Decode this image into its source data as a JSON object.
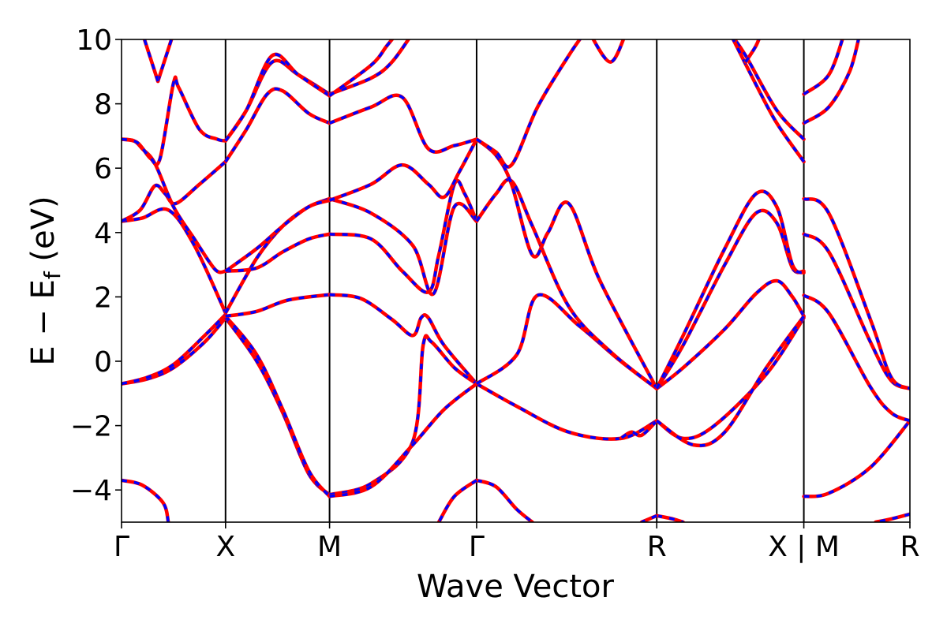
{
  "chart_data": {
    "type": "line",
    "title": "",
    "xlabel": "Wave Vector",
    "ylabel": "E − E",
    "ylabel_subscript": "f",
    "ylabel_unit": "(eV)",
    "ylim": [
      -5,
      10
    ],
    "yticks": [
      -4,
      -2,
      0,
      2,
      4,
      6,
      8,
      10
    ],
    "grid": false,
    "legend": "none",
    "path_length": 7.58,
    "high_symmetry_points": [
      {
        "label": "Γ",
        "x": 0
      },
      {
        "label": "X",
        "x": 1
      },
      {
        "label": "M",
        "x": 2
      },
      {
        "label": "Γ",
        "x": 3.414
      },
      {
        "label": "R",
        "x": 5.146
      },
      {
        "label": "X | M",
        "x": 6.56
      },
      {
        "label": "R",
        "x": 7.58
      }
    ],
    "series_style": {
      "reference": "#0000ff",
      "comparison": "#ff0000"
    },
    "bands": [
      [
        [
          0,
          -3.7
        ],
        [
          0.2,
          -3.85
        ],
        [
          0.4,
          -4.4
        ],
        [
          0.45,
          -5
        ]
      ],
      [
        [
          0,
          -0.7
        ],
        [
          0.25,
          -0.55
        ],
        [
          0.5,
          -0.2
        ],
        [
          0.8,
          0.6
        ],
        [
          1,
          1.35
        ]
      ],
      [
        [
          0,
          -0.7
        ],
        [
          0.25,
          -0.5
        ],
        [
          0.5,
          -0.1
        ],
        [
          0.8,
          0.8
        ],
        [
          1,
          1.45
        ]
      ],
      [
        [
          0,
          4.35
        ],
        [
          0.2,
          4.45
        ],
        [
          0.45,
          4.7
        ],
        [
          0.7,
          3.6
        ],
        [
          1,
          1.5
        ]
      ],
      [
        [
          0,
          4.35
        ],
        [
          0.18,
          4.7
        ],
        [
          0.32,
          5.45
        ],
        [
          0.42,
          5.2
        ],
        [
          0.52,
          4.9
        ],
        [
          0.75,
          5.5
        ],
        [
          1,
          6.2
        ]
      ],
      [
        [
          0,
          6.9
        ],
        [
          0.12,
          6.85
        ],
        [
          0.2,
          6.6
        ],
        [
          0.32,
          6.15
        ],
        [
          0.5,
          4.8
        ],
        [
          0.7,
          3.8
        ],
        [
          0.9,
          2.85
        ],
        [
          1,
          2.8
        ]
      ],
      [
        [
          0,
          6.9
        ],
        [
          0.15,
          6.8
        ],
        [
          0.28,
          6.3
        ],
        [
          0.37,
          6.3
        ],
        [
          0.5,
          8.65
        ],
        [
          0.55,
          8.5
        ],
        [
          0.75,
          7.2
        ],
        [
          0.92,
          6.9
        ],
        [
          1,
          6.85
        ]
      ],
      [
        [
          0.35,
          8.7
        ],
        [
          0.5,
          10.2
        ]
      ],
      [
        [
          0.35,
          8.7
        ],
        [
          0.2,
          10.2
        ]
      ],
      [
        [
          1,
          1.35
        ],
        [
          1.3,
          0
        ],
        [
          1.55,
          -1.6
        ],
        [
          1.8,
          -3.5
        ],
        [
          2,
          -4.15
        ]
      ],
      [
        [
          1,
          1.4
        ],
        [
          1.3,
          0.2
        ],
        [
          1.55,
          -1.5
        ],
        [
          1.8,
          -3.4
        ],
        [
          2,
          -4.2
        ]
      ],
      [
        [
          1,
          1.4
        ],
        [
          1.3,
          1.55
        ],
        [
          1.6,
          1.9
        ],
        [
          2,
          2.07
        ]
      ],
      [
        [
          1,
          1.5
        ],
        [
          1.3,
          3.2
        ],
        [
          1.55,
          4.2
        ],
        [
          1.8,
          4.8
        ],
        [
          2,
          5.05
        ]
      ],
      [
        [
          1,
          2.8
        ],
        [
          1.3,
          2.9
        ],
        [
          1.55,
          3.4
        ],
        [
          1.8,
          3.8
        ],
        [
          2,
          3.95
        ]
      ],
      [
        [
          1,
          2.8
        ],
        [
          1.3,
          3.5
        ],
        [
          1.55,
          4.2
        ],
        [
          1.8,
          4.8
        ],
        [
          2,
          5.0
        ]
      ],
      [
        [
          1,
          6.2
        ],
        [
          1.2,
          7.2
        ],
        [
          1.4,
          8.3
        ],
        [
          1.55,
          8.4
        ],
        [
          1.8,
          7.7
        ],
        [
          2,
          7.4
        ]
      ],
      [
        [
          1,
          6.85
        ],
        [
          1.2,
          7.8
        ],
        [
          1.45,
          9.3
        ],
        [
          1.7,
          8.9
        ],
        [
          2,
          8.3
        ]
      ],
      [
        [
          1,
          6.85
        ],
        [
          1.2,
          7.8
        ],
        [
          1.45,
          9.5
        ],
        [
          1.7,
          8.9
        ],
        [
          2,
          8.25
        ]
      ],
      [
        [
          2,
          2.07
        ],
        [
          2.3,
          1.95
        ],
        [
          2.6,
          1.3
        ],
        [
          2.8,
          0.8
        ],
        [
          2.88,
          1.35
        ],
        [
          2.95,
          1.35
        ],
        [
          3.1,
          0.5
        ],
        [
          3.414,
          -0.7
        ]
      ],
      [
        [
          2,
          -4.15
        ],
        [
          2.4,
          -3.8
        ],
        [
          2.8,
          -2.5
        ],
        [
          2.9,
          0.5
        ],
        [
          2.98,
          0.6
        ],
        [
          3.2,
          -0.2
        ],
        [
          3.414,
          -0.7
        ]
      ],
      [
        [
          2,
          -4.2
        ],
        [
          2.4,
          -3.9
        ],
        [
          2.8,
          -2.6
        ],
        [
          3.1,
          -1.5
        ],
        [
          3.414,
          -0.7
        ]
      ],
      [
        [
          2,
          5.05
        ],
        [
          2.4,
          4.6
        ],
        [
          2.8,
          3.6
        ],
        [
          3.0,
          2.1
        ],
        [
          3.2,
          4.8
        ],
        [
          3.414,
          4.35
        ]
      ],
      [
        [
          2,
          3.95
        ],
        [
          2.4,
          3.8
        ],
        [
          2.7,
          2.8
        ],
        [
          2.95,
          2.15
        ],
        [
          3.05,
          3.3
        ],
        [
          3.2,
          5.5
        ],
        [
          3.3,
          5.2
        ],
        [
          3.414,
          4.35
        ]
      ],
      [
        [
          2,
          5.0
        ],
        [
          2.4,
          5.5
        ],
        [
          2.7,
          6.1
        ],
        [
          2.95,
          5.5
        ],
        [
          3.1,
          5.1
        ],
        [
          3.25,
          5.9
        ],
        [
          3.414,
          6.9
        ]
      ],
      [
        [
          2,
          7.4
        ],
        [
          2.4,
          7.9
        ],
        [
          2.7,
          8.2
        ],
        [
          2.95,
          6.6
        ],
        [
          3.2,
          6.7
        ],
        [
          3.414,
          6.9
        ]
      ],
      [
        [
          2,
          8.3
        ],
        [
          2.4,
          8.8
        ],
        [
          2.6,
          9.3
        ],
        [
          2.8,
          10.2
        ]
      ],
      [
        [
          2,
          8.25
        ],
        [
          2.4,
          9.2
        ],
        [
          2.55,
          9.8
        ],
        [
          2.65,
          10.2
        ]
      ],
      [
        [
          3.414,
          -3.7
        ],
        [
          3.6,
          -3.9
        ],
        [
          3.8,
          -4.6
        ],
        [
          3.95,
          -5
        ]
      ],
      [
        [
          3.414,
          -3.7
        ],
        [
          3.2,
          -4.2
        ],
        [
          3.05,
          -5
        ]
      ],
      [
        [
          3.414,
          -0.7
        ],
        [
          3.8,
          -1.4
        ],
        [
          4.3,
          -2.2
        ],
        [
          4.8,
          -2.4
        ],
        [
          5.146,
          -1.85
        ]
      ],
      [
        [
          3.414,
          -0.7
        ],
        [
          3.8,
          0.2
        ],
        [
          4.0,
          2.05
        ],
        [
          4.4,
          1.1
        ],
        [
          4.8,
          0.0
        ],
        [
          5.146,
          -0.85
        ]
      ],
      [
        [
          3.414,
          4.35
        ],
        [
          3.6,
          5.2
        ],
        [
          3.75,
          5.6
        ],
        [
          3.95,
          4.2
        ],
        [
          4.3,
          1.7
        ],
        [
          4.7,
          0.3
        ],
        [
          5.146,
          -0.85
        ]
      ],
      [
        [
          3.414,
          6.9
        ],
        [
          3.6,
          6.4
        ],
        [
          3.75,
          5.5
        ],
        [
          3.95,
          3.3
        ],
        [
          4.1,
          4.0
        ],
        [
          4.3,
          4.9
        ],
        [
          4.6,
          2.5
        ],
        [
          5.146,
          -0.85
        ]
      ],
      [
        [
          3.414,
          6.9
        ],
        [
          3.6,
          6.5
        ],
        [
          3.75,
          6.1
        ],
        [
          4.0,
          7.9
        ],
        [
          4.3,
          9.5
        ],
        [
          4.45,
          10.2
        ]
      ],
      [
        [
          4.5,
          10.2
        ],
        [
          4.7,
          9.3
        ],
        [
          4.85,
          10.2
        ]
      ],
      [
        [
          5.146,
          -1.85
        ],
        [
          5.0,
          -2.3
        ],
        [
          4.9,
          -2.2
        ],
        [
          4.8,
          -2.4
        ]
      ],
      [
        [
          5.146,
          -0.85
        ],
        [
          5.4,
          -0.2
        ],
        [
          5.8,
          1.0
        ],
        [
          6.1,
          2.1
        ],
        [
          6.3,
          2.5
        ],
        [
          6.45,
          2.0
        ],
        [
          6.56,
          1.4
        ]
      ],
      [
        [
          5.146,
          -0.85
        ],
        [
          5.4,
          0.5
        ],
        [
          5.8,
          3.0
        ],
        [
          6.1,
          4.6
        ],
        [
          6.3,
          4.3
        ],
        [
          6.45,
          2.9
        ],
        [
          6.56,
          2.8
        ]
      ],
      [
        [
          5.146,
          -0.85
        ],
        [
          5.4,
          0.8
        ],
        [
          5.8,
          3.5
        ],
        [
          6.1,
          5.2
        ],
        [
          6.3,
          4.8
        ],
        [
          6.45,
          3.0
        ],
        [
          6.56,
          2.75
        ]
      ],
      [
        [
          5.146,
          -1.85
        ],
        [
          5.4,
          -2.4
        ],
        [
          5.7,
          -2.0
        ],
        [
          6.2,
          -0.4
        ],
        [
          6.56,
          1.35
        ]
      ],
      [
        [
          5.146,
          -1.85
        ],
        [
          5.5,
          -2.6
        ],
        [
          5.8,
          -2.2
        ],
        [
          6.2,
          -0.2
        ],
        [
          6.56,
          1.4
        ]
      ],
      [
        [
          5.146,
          -4.8
        ],
        [
          5.3,
          -4.9
        ],
        [
          5.4,
          -5.0
        ]
      ],
      [
        [
          5.146,
          -4.8
        ],
        [
          5.0,
          -5.0
        ]
      ],
      [
        [
          6.56,
          6.9
        ],
        [
          6.3,
          7.8
        ],
        [
          6.0,
          9.5
        ],
        [
          5.85,
          10.2
        ]
      ],
      [
        [
          6.56,
          6.2
        ],
        [
          6.3,
          7.4
        ],
        [
          6.1,
          8.6
        ],
        [
          5.85,
          10.2
        ]
      ],
      [
        [
          6.0,
          9.3
        ],
        [
          6.1,
          9.8
        ],
        [
          6.15,
          10.2
        ]
      ],
      [
        [
          6.56,
          -4.2
        ],
        [
          6.8,
          -4.1
        ],
        [
          7.2,
          -3.3
        ],
        [
          7.58,
          -1.85
        ]
      ],
      [
        [
          6.56,
          2.05
        ],
        [
          6.8,
          1.5
        ],
        [
          7.2,
          -0.8
        ],
        [
          7.4,
          -1.6
        ],
        [
          7.58,
          -1.85
        ]
      ],
      [
        [
          6.56,
          3.95
        ],
        [
          6.8,
          3.4
        ],
        [
          7.2,
          0.6
        ],
        [
          7.4,
          -0.6
        ],
        [
          7.58,
          -0.85
        ]
      ],
      [
        [
          6.56,
          5.05
        ],
        [
          6.8,
          4.6
        ],
        [
          7.2,
          1.3
        ],
        [
          7.4,
          -0.5
        ],
        [
          7.58,
          -0.85
        ]
      ],
      [
        [
          6.56,
          7.4
        ],
        [
          6.8,
          7.9
        ],
        [
          7.0,
          9.0
        ],
        [
          7.1,
          10.2
        ]
      ],
      [
        [
          6.56,
          8.3
        ],
        [
          6.8,
          8.9
        ],
        [
          6.95,
          10.2
        ]
      ],
      [
        [
          7.58,
          -4.75
        ],
        [
          7.4,
          -4.9
        ],
        [
          7.25,
          -5.0
        ]
      ]
    ]
  }
}
